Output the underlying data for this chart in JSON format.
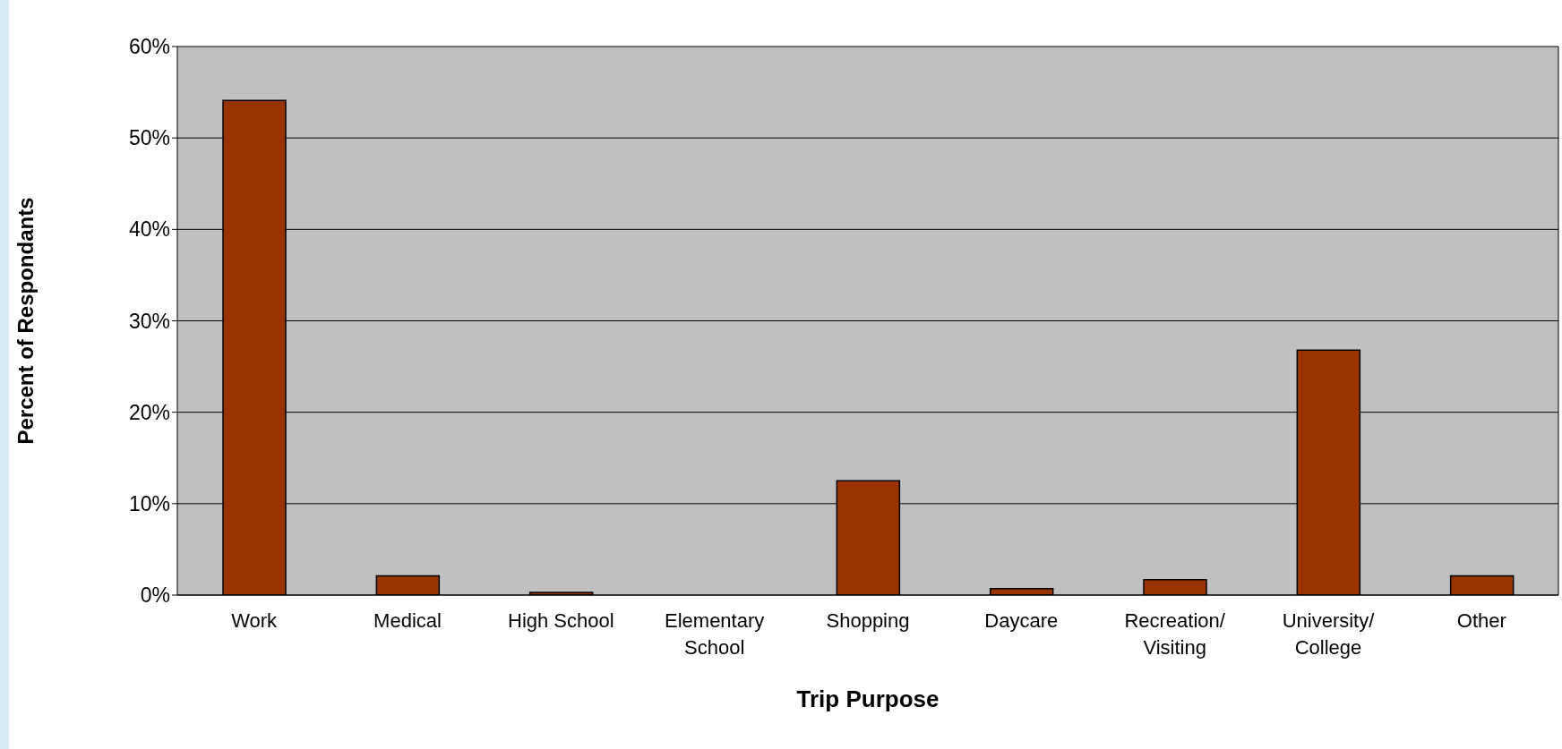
{
  "chart_data": {
    "type": "bar",
    "xlabel": "Trip Purpose",
    "ylabel": "Percent of Respondants",
    "categories": [
      "Work",
      "Medical",
      "High School",
      "Elementary School",
      "Shopping",
      "Daycare",
      "Recreation/ Visiting",
      "University/ College",
      "Other"
    ],
    "values": [
      54.1,
      2.1,
      0.3,
      0,
      12.5,
      0.7,
      1.7,
      26.8,
      2.1
    ],
    "color": "#993300",
    "ylim": [
      0,
      60
    ],
    "yticks": [
      {
        "value": 0,
        "label": "0%"
      },
      {
        "value": 10,
        "label": "10%"
      },
      {
        "value": 20,
        "label": "20%"
      },
      {
        "value": 30,
        "label": "30%"
      },
      {
        "value": 40,
        "label": "40%"
      },
      {
        "value": 50,
        "label": "50%"
      },
      {
        "value": 60,
        "label": "60%"
      }
    ],
    "grid": "y"
  }
}
